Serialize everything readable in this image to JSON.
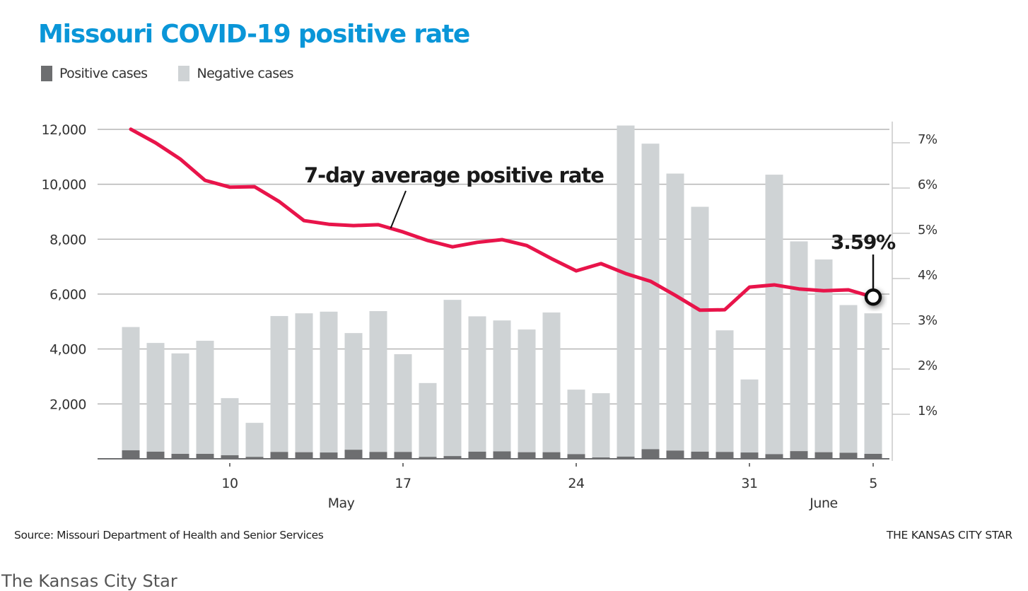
{
  "chart_data": {
    "type": "bar",
    "title": "Missouri COVID-19 positive rate",
    "legend": [
      {
        "label": "Positive cases",
        "color": "#6d6e70"
      },
      {
        "label": "Negative cases",
        "color": "#cfd3d5"
      }
    ],
    "legend_position": "top-left",
    "categories": [
      "May 6",
      "May 7",
      "May 8",
      "May 9",
      "May 10",
      "May 11",
      "May 12",
      "May 13",
      "May 14",
      "May 15",
      "May 16",
      "May 17",
      "May 18",
      "May 19",
      "May 20",
      "May 21",
      "May 22",
      "May 23",
      "May 24",
      "May 25",
      "May 26",
      "May 27",
      "May 28",
      "May 29",
      "May 30",
      "May 31",
      "June 1",
      "June 2",
      "June 3",
      "June 4",
      "June 5"
    ],
    "series": [
      {
        "name": "Positive cases",
        "type": "stacked-bar",
        "color": "#6d6e70",
        "values": [
          310,
          260,
          180,
          180,
          130,
          70,
          250,
          240,
          230,
          330,
          250,
          250,
          70,
          100,
          260,
          270,
          240,
          240,
          170,
          50,
          80,
          350,
          300,
          260,
          250,
          230,
          170,
          280,
          240,
          220,
          180
        ]
      },
      {
        "name": "Negative cases",
        "type": "stacked-bar",
        "color": "#cfd3d5",
        "values": [
          4490,
          3960,
          3660,
          4120,
          2080,
          1240,
          4950,
          5060,
          5130,
          4250,
          5130,
          3560,
          2690,
          5690,
          4930,
          4770,
          4470,
          5090,
          2350,
          2340,
          12060,
          11130,
          10090,
          8920,
          4430,
          2660,
          10180,
          7640,
          7020,
          5380,
          5120
        ]
      },
      {
        "name": "7-day average positive rate",
        "type": "line",
        "axis": "right",
        "color": "#e8144a",
        "values": [
          7.3,
          7.0,
          6.64,
          6.17,
          6.02,
          6.03,
          5.7,
          5.28,
          5.2,
          5.17,
          5.19,
          5.03,
          4.84,
          4.7,
          4.8,
          4.86,
          4.73,
          4.44,
          4.17,
          4.33,
          4.11,
          3.94,
          3.63,
          3.3,
          3.31,
          3.81,
          3.86,
          3.77,
          3.73,
          3.75,
          3.59
        ]
      }
    ],
    "y_left": {
      "label": "",
      "ylim": [
        0,
        12000
      ],
      "ticks": [
        "2,000",
        "4,000",
        "6,000",
        "8,000",
        "10,000",
        "12,000"
      ],
      "tick_values": [
        2000,
        4000,
        6000,
        8000,
        10000,
        12000
      ]
    },
    "y_right": {
      "label": "",
      "ylim": [
        0,
        7
      ],
      "ticks": [
        "1%",
        "2%",
        "3%",
        "4%",
        "5%",
        "6%",
        "7%"
      ],
      "tick_values": [
        1,
        2,
        3,
        4,
        5,
        6,
        7
      ]
    },
    "x_ticks": [
      {
        "label": "10",
        "index": 4
      },
      {
        "label": "17",
        "index": 11
      },
      {
        "label": "24",
        "index": 18
      },
      {
        "label": "31",
        "index": 25
      },
      {
        "label": "5",
        "index": 30
      }
    ],
    "x_months": [
      {
        "label": "May",
        "index": 8.5
      },
      {
        "label": "June",
        "index": 28
      }
    ],
    "annotations": [
      {
        "text": "7-day average positive rate",
        "target_index": 10.5
      },
      {
        "text": "3.59%",
        "target_index": 30
      }
    ],
    "grid": true
  },
  "footer": {
    "source": "Source: Missouri Department of Health and Senior Services",
    "credit": "THE KANSAS CITY STAR",
    "caption_cutoff": "The Kansas City Star"
  }
}
